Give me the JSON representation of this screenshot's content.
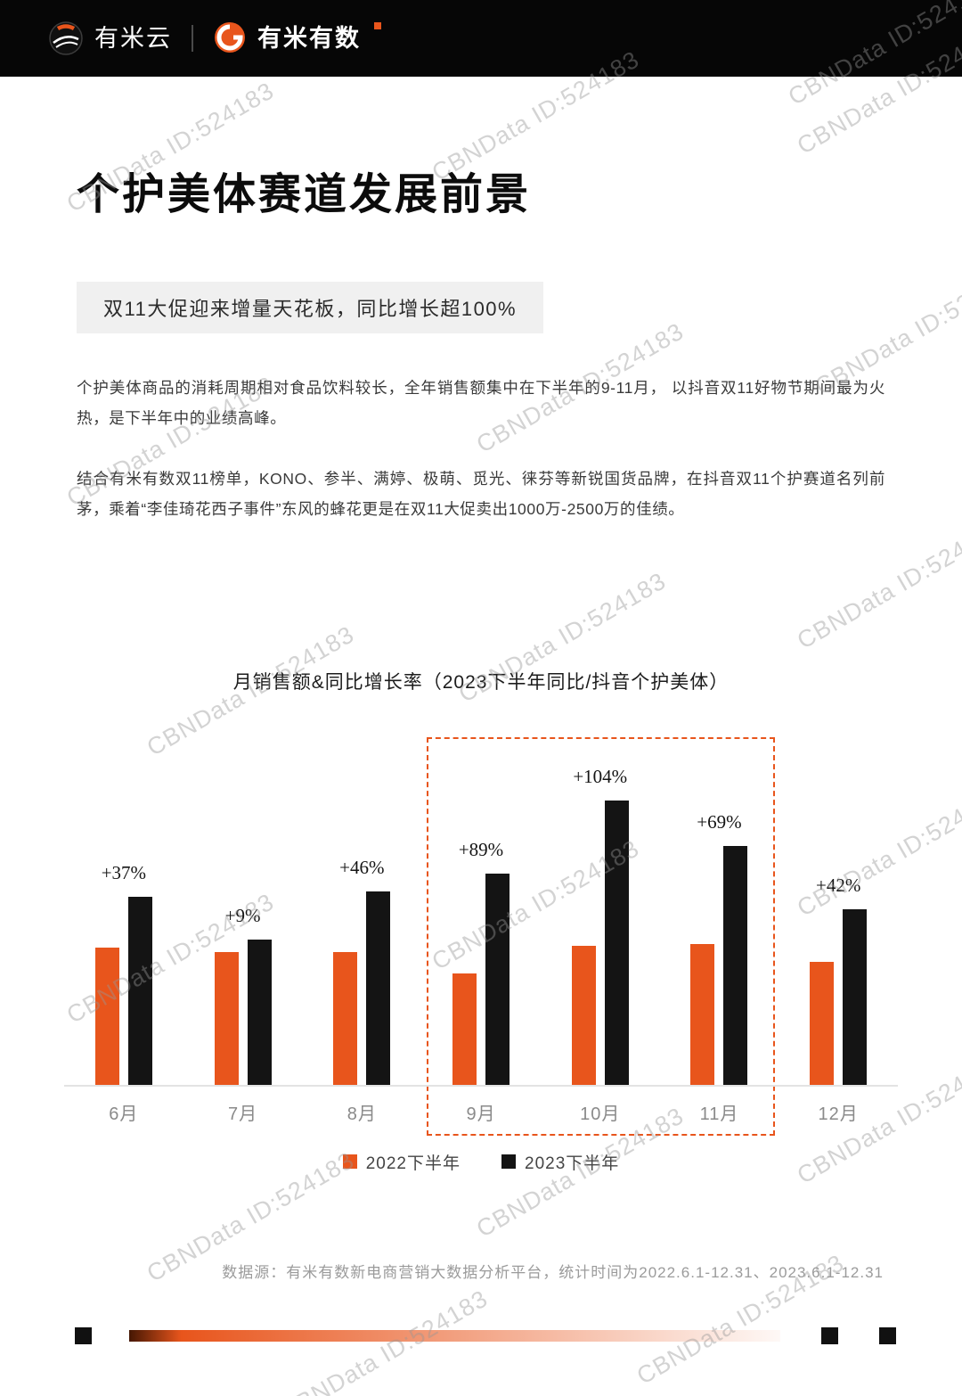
{
  "header": {
    "brand_left": "有米云",
    "brand_right": "有米有数"
  },
  "page": {
    "title": "个护美体赛道发展前景",
    "subtitle": "双11大促迎来增量天花板，同比增长超100%",
    "paragraph1": "个护美体商品的消耗周期相对食品饮料较长，全年销售额集中在下半年的9-11月， 以抖音双11好物节期间最为火热，是下半年中的业绩高峰。",
    "paragraph2": "结合有米有数双11榜单，KONO、参半、满婷、极萌、觅光、徕芬等新锐国货品牌，在抖音双11个护赛道名列前茅，乘着“李佳琦花西子事件”东风的蜂花更是在双11大促卖出1000万-2500万的佳绩。",
    "source_note": "数据源：有米有数新电商营销大数据分析平台，统计时间为2022.6.1-12.31、2023.6.1-12.31"
  },
  "watermark": {
    "text": "CBNData ID:524183"
  },
  "chart_data": {
    "type": "bar",
    "title": "月销售额&同比增长率（2023下半年同比/抖音个护美体）",
    "categories": [
      "6月",
      "7月",
      "8月",
      "9月",
      "10月",
      "11月",
      "12月"
    ],
    "series": [
      {
        "name": "2022下半年",
        "color": "#e8551c",
        "values": [
          145,
          140,
          140,
          118,
          147,
          149,
          130
        ]
      },
      {
        "name": "2023下半年",
        "color": "#141414",
        "values": [
          199,
          153,
          204,
          223,
          300,
          252,
          185
        ]
      }
    ],
    "growth_labels": [
      "+37%",
      "+9%",
      "+46%",
      "+89%",
      "+104%",
      "+69%",
      "+42%"
    ],
    "highlighted_categories": [
      "9月",
      "10月",
      "11月"
    ],
    "xlabel": "",
    "ylabel": "",
    "ylim": [
      0,
      320
    ],
    "grid": false,
    "legend_position": "bottom"
  }
}
